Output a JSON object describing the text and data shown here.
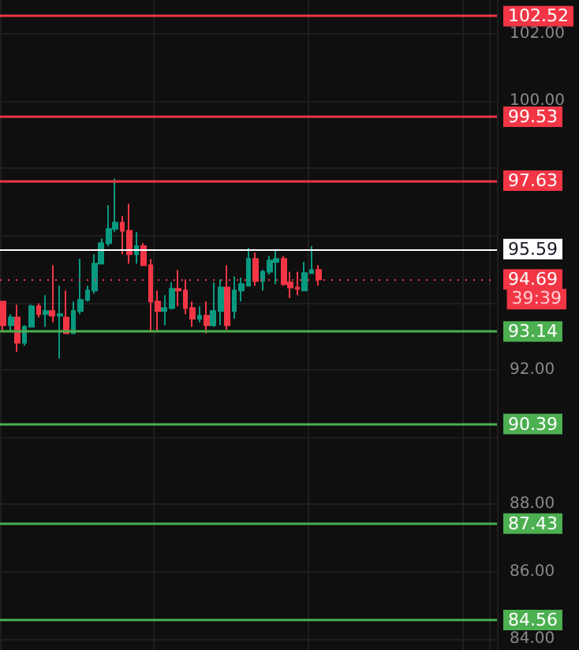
{
  "chart_data": {
    "type": "candlestick",
    "categories": [
      null,
      null,
      null,
      null,
      null,
      null,
      null,
      null,
      null,
      null,
      null,
      null,
      null,
      null,
      null,
      null,
      null,
      null,
      null,
      null,
      null,
      null,
      null,
      null,
      null,
      null,
      null,
      null,
      null,
      null,
      null,
      null,
      null,
      null,
      null,
      null,
      null,
      null,
      null,
      null,
      null,
      null,
      null,
      null,
      null,
      null,
      null,
      null,
      null,
      null,
      null,
      null,
      null,
      null,
      null,
      null,
      null,
      null,
      null,
      null,
      null,
      null,
      null,
      null,
      null,
      null,
      null,
      null,
      null,
      null,
      null
    ],
    "ohlc": [
      [
        94.03,
        94.03,
        93.14,
        93.33
      ],
      [
        93.33,
        93.66,
        93.14,
        93.56
      ],
      [
        93.56,
        93.94,
        92.53,
        92.81
      ],
      [
        92.81,
        93.33,
        92.72,
        93.28
      ],
      [
        93.28,
        93.94,
        93.28,
        93.89
      ],
      [
        93.89,
        93.98,
        93.56,
        93.66
      ],
      [
        93.66,
        94.22,
        93.28,
        93.75
      ],
      [
        93.75,
        95.11,
        93.42,
        93.61
      ],
      [
        93.61,
        94.5,
        92.34,
        93.66
      ],
      [
        93.56,
        94.36,
        93.09,
        93.09
      ],
      [
        93.09,
        94.03,
        93.09,
        93.75
      ],
      [
        93.75,
        95.3,
        93.66,
        94.08
      ],
      [
        94.08,
        94.5,
        94.03,
        94.36
      ],
      [
        94.36,
        95.44,
        94.27,
        95.16
      ],
      [
        95.16,
        95.91,
        95.16,
        95.77
      ],
      [
        95.77,
        96.9,
        95.68,
        96.19
      ],
      [
        96.19,
        97.69,
        96.1,
        96.38
      ],
      [
        96.38,
        96.57,
        95.44,
        96.14
      ],
      [
        96.14,
        96.94,
        95.16,
        95.44
      ],
      [
        95.44,
        96.1,
        95.16,
        95.68
      ],
      [
        95.68,
        95.77,
        95.11,
        95.11
      ],
      [
        95.11,
        95.3,
        93.14,
        94.03
      ],
      [
        94.03,
        94.36,
        93.14,
        93.75
      ],
      [
        93.75,
        94.22,
        93.33,
        93.84
      ],
      [
        93.84,
        94.6,
        93.8,
        94.41
      ],
      [
        94.41,
        94.97,
        93.89,
        94.36
      ],
      [
        94.36,
        94.69,
        93.66,
        93.84
      ],
      [
        93.84,
        94.03,
        93.28,
        93.52
      ],
      [
        93.52,
        93.89,
        93.42,
        93.61
      ],
      [
        93.61,
        94.03,
        93.09,
        93.33
      ],
      [
        93.33,
        94.6,
        93.28,
        93.75
      ],
      [
        93.75,
        94.69,
        93.33,
        94.45
      ],
      [
        94.45,
        95.11,
        93.19,
        93.33
      ],
      [
        93.75,
        94.78,
        93.52,
        94.36
      ],
      [
        94.36,
        94.74,
        94.03,
        94.55
      ],
      [
        94.5,
        95.63,
        94.5,
        95.3
      ],
      [
        95.3,
        95.49,
        94.5,
        94.64
      ],
      [
        94.64,
        94.97,
        94.36,
        94.92
      ],
      [
        94.92,
        95.39,
        94.83,
        95.25
      ],
      [
        95.21,
        95.58,
        94.55,
        95.3
      ],
      [
        95.3,
        95.39,
        94.5,
        94.55
      ],
      [
        94.6,
        94.92,
        94.13,
        94.45
      ],
      [
        94.45,
        94.92,
        94.22,
        94.41
      ],
      [
        94.36,
        95.21,
        94.36,
        94.88
      ],
      [
        94.88,
        95.68,
        94.88,
        94.97
      ],
      [
        94.97,
        95.11,
        94.5,
        94.69
      ],
      null,
      null,
      null,
      null,
      null,
      null,
      null,
      null,
      null,
      null,
      null,
      null,
      null,
      null,
      null,
      null,
      null,
      null,
      null,
      null,
      null,
      null,
      null,
      null,
      null
    ],
    "ylim": [
      83.67,
      103
    ],
    "yticks": [
      {
        "value": 84,
        "label": "84.00"
      },
      {
        "value": 86,
        "label": "86.00"
      },
      {
        "value": 88,
        "label": "88.00"
      },
      {
        "value": 90,
        "label": null
      },
      {
        "value": 92,
        "label": "92.00"
      },
      {
        "value": 94,
        "label": null
      },
      {
        "value": 96,
        "label": null
      },
      {
        "value": 98,
        "label": null
      },
      {
        "value": 100,
        "label": "100.00"
      },
      {
        "value": 102,
        "label": "102.00"
      }
    ],
    "grid": true,
    "tick_labels": "y",
    "ref_lines": [
      {
        "axis": "y",
        "value": 102.52,
        "label": "102.52",
        "color": "#f23645"
      },
      {
        "axis": "y",
        "value": 99.53,
        "label": "99.53",
        "color": "#f23645"
      },
      {
        "axis": "y",
        "value": 97.63,
        "label": "97.63",
        "color": "#f23645"
      },
      {
        "axis": "y",
        "value": 95.59,
        "label": "95.59",
        "color": "#ffffff"
      },
      {
        "axis": "y",
        "value": 94.69,
        "label": "94.69",
        "color": "#f23645",
        "line_style": "dotted"
      },
      {
        "axis": "y",
        "value": 93.14,
        "label": "93.14",
        "color": "#4caf50"
      },
      {
        "axis": "y",
        "value": 90.39,
        "label": "90.39",
        "color": "#4caf50"
      },
      {
        "axis": "y",
        "value": 87.43,
        "label": "87.43",
        "color": "#4caf50"
      },
      {
        "axis": "y",
        "value": 84.56,
        "label": "84.56",
        "color": "#4caf50"
      }
    ],
    "annotations": [
      "39:39"
    ]
  }
}
